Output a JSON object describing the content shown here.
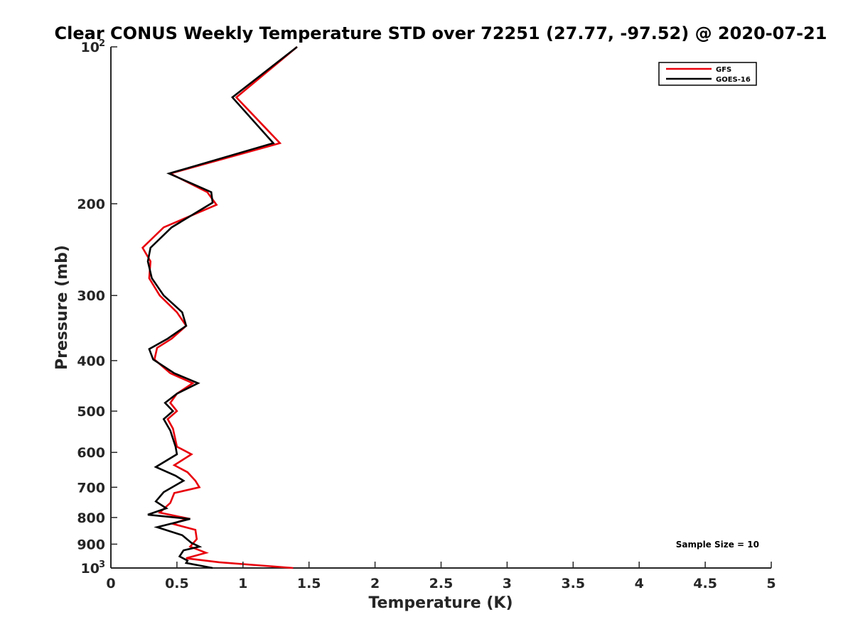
{
  "chart_data": {
    "type": "line",
    "title": "Clear CONUS Weekly Temperature STD over 72251 (27.77, -97.52) @ 2020-07-21",
    "xlabel": "Temperature (K)",
    "ylabel": "Pressure (mb)",
    "xlim": [
      0,
      5
    ],
    "ylim": [
      100,
      1000
    ],
    "y_scale": "log",
    "y_reversed": true,
    "grid": false,
    "legend_position": "top-right",
    "x_ticks": [
      {
        "value": 0,
        "label": "0"
      },
      {
        "value": 0.5,
        "label": "0.5"
      },
      {
        "value": 1,
        "label": "1"
      },
      {
        "value": 1.5,
        "label": "1.5"
      },
      {
        "value": 2,
        "label": "2"
      },
      {
        "value": 2.5,
        "label": "2.5"
      },
      {
        "value": 3,
        "label": "3"
      },
      {
        "value": 3.5,
        "label": "3.5"
      },
      {
        "value": 4,
        "label": "4"
      },
      {
        "value": 4.5,
        "label": "4.5"
      },
      {
        "value": 5,
        "label": "5"
      }
    ],
    "y_ticks": [
      {
        "value": 100,
        "base": "10",
        "exp": "2"
      },
      {
        "value": 200,
        "label": "200"
      },
      {
        "value": 300,
        "label": "300"
      },
      {
        "value": 400,
        "label": "400"
      },
      {
        "value": 500,
        "label": "500"
      },
      {
        "value": 600,
        "label": "600"
      },
      {
        "value": 700,
        "label": "700"
      },
      {
        "value": 800,
        "label": "800"
      },
      {
        "value": 900,
        "label": "900"
      },
      {
        "value": 1000,
        "base": "10",
        "exp": "3"
      }
    ],
    "series": [
      {
        "name": "GFS",
        "color": "#e8000b",
        "points": [
          {
            "x": 1.41,
            "y": 100
          },
          {
            "x": 0.95,
            "y": 125
          },
          {
            "x": 1.28,
            "y": 153
          },
          {
            "x": 0.45,
            "y": 175
          },
          {
            "x": 0.73,
            "y": 190
          },
          {
            "x": 0.8,
            "y": 201
          },
          {
            "x": 0.4,
            "y": 222
          },
          {
            "x": 0.24,
            "y": 243
          },
          {
            "x": 0.3,
            "y": 258
          },
          {
            "x": 0.29,
            "y": 278
          },
          {
            "x": 0.37,
            "y": 300
          },
          {
            "x": 0.5,
            "y": 323
          },
          {
            "x": 0.57,
            "y": 343
          },
          {
            "x": 0.46,
            "y": 363
          },
          {
            "x": 0.35,
            "y": 378
          },
          {
            "x": 0.33,
            "y": 398
          },
          {
            "x": 0.45,
            "y": 423
          },
          {
            "x": 0.62,
            "y": 442
          },
          {
            "x": 0.5,
            "y": 463
          },
          {
            "x": 0.45,
            "y": 482
          },
          {
            "x": 0.5,
            "y": 500
          },
          {
            "x": 0.43,
            "y": 518
          },
          {
            "x": 0.47,
            "y": 540
          },
          {
            "x": 0.5,
            "y": 585
          },
          {
            "x": 0.61,
            "y": 605
          },
          {
            "x": 0.48,
            "y": 635
          },
          {
            "x": 0.58,
            "y": 655
          },
          {
            "x": 0.64,
            "y": 680
          },
          {
            "x": 0.67,
            "y": 700
          },
          {
            "x": 0.48,
            "y": 718
          },
          {
            "x": 0.45,
            "y": 750
          },
          {
            "x": 0.37,
            "y": 783
          },
          {
            "x": 0.58,
            "y": 803
          },
          {
            "x": 0.47,
            "y": 823
          },
          {
            "x": 0.64,
            "y": 845
          },
          {
            "x": 0.65,
            "y": 880
          },
          {
            "x": 0.6,
            "y": 910
          },
          {
            "x": 0.72,
            "y": 935
          },
          {
            "x": 0.57,
            "y": 958
          },
          {
            "x": 0.82,
            "y": 975
          },
          {
            "x": 1.38,
            "y": 1000
          }
        ]
      },
      {
        "name": "GOES-16",
        "color": "#000000",
        "points": [
          {
            "x": 1.41,
            "y": 100
          },
          {
            "x": 0.92,
            "y": 125
          },
          {
            "x": 1.23,
            "y": 153
          },
          {
            "x": 0.44,
            "y": 175
          },
          {
            "x": 0.76,
            "y": 190
          },
          {
            "x": 0.77,
            "y": 199
          },
          {
            "x": 0.46,
            "y": 222
          },
          {
            "x": 0.3,
            "y": 243
          },
          {
            "x": 0.28,
            "y": 258
          },
          {
            "x": 0.31,
            "y": 278
          },
          {
            "x": 0.4,
            "y": 300
          },
          {
            "x": 0.54,
            "y": 323
          },
          {
            "x": 0.57,
            "y": 343
          },
          {
            "x": 0.43,
            "y": 363
          },
          {
            "x": 0.29,
            "y": 380
          },
          {
            "x": 0.32,
            "y": 398
          },
          {
            "x": 0.48,
            "y": 423
          },
          {
            "x": 0.66,
            "y": 442
          },
          {
            "x": 0.5,
            "y": 463
          },
          {
            "x": 0.41,
            "y": 482
          },
          {
            "x": 0.47,
            "y": 500
          },
          {
            "x": 0.4,
            "y": 518
          },
          {
            "x": 0.45,
            "y": 545
          },
          {
            "x": 0.49,
            "y": 585
          },
          {
            "x": 0.5,
            "y": 605
          },
          {
            "x": 0.34,
            "y": 640
          },
          {
            "x": 0.49,
            "y": 665
          },
          {
            "x": 0.55,
            "y": 680
          },
          {
            "x": 0.4,
            "y": 715
          },
          {
            "x": 0.34,
            "y": 745
          },
          {
            "x": 0.42,
            "y": 768
          },
          {
            "x": 0.28,
            "y": 790
          },
          {
            "x": 0.6,
            "y": 805
          },
          {
            "x": 0.35,
            "y": 835
          },
          {
            "x": 0.54,
            "y": 865
          },
          {
            "x": 0.61,
            "y": 895
          },
          {
            "x": 0.67,
            "y": 910
          },
          {
            "x": 0.55,
            "y": 925
          },
          {
            "x": 0.52,
            "y": 950
          },
          {
            "x": 0.58,
            "y": 968
          },
          {
            "x": 0.57,
            "y": 978
          },
          {
            "x": 0.77,
            "y": 1000
          }
        ]
      }
    ],
    "annotation": "Sample Size = 10"
  }
}
